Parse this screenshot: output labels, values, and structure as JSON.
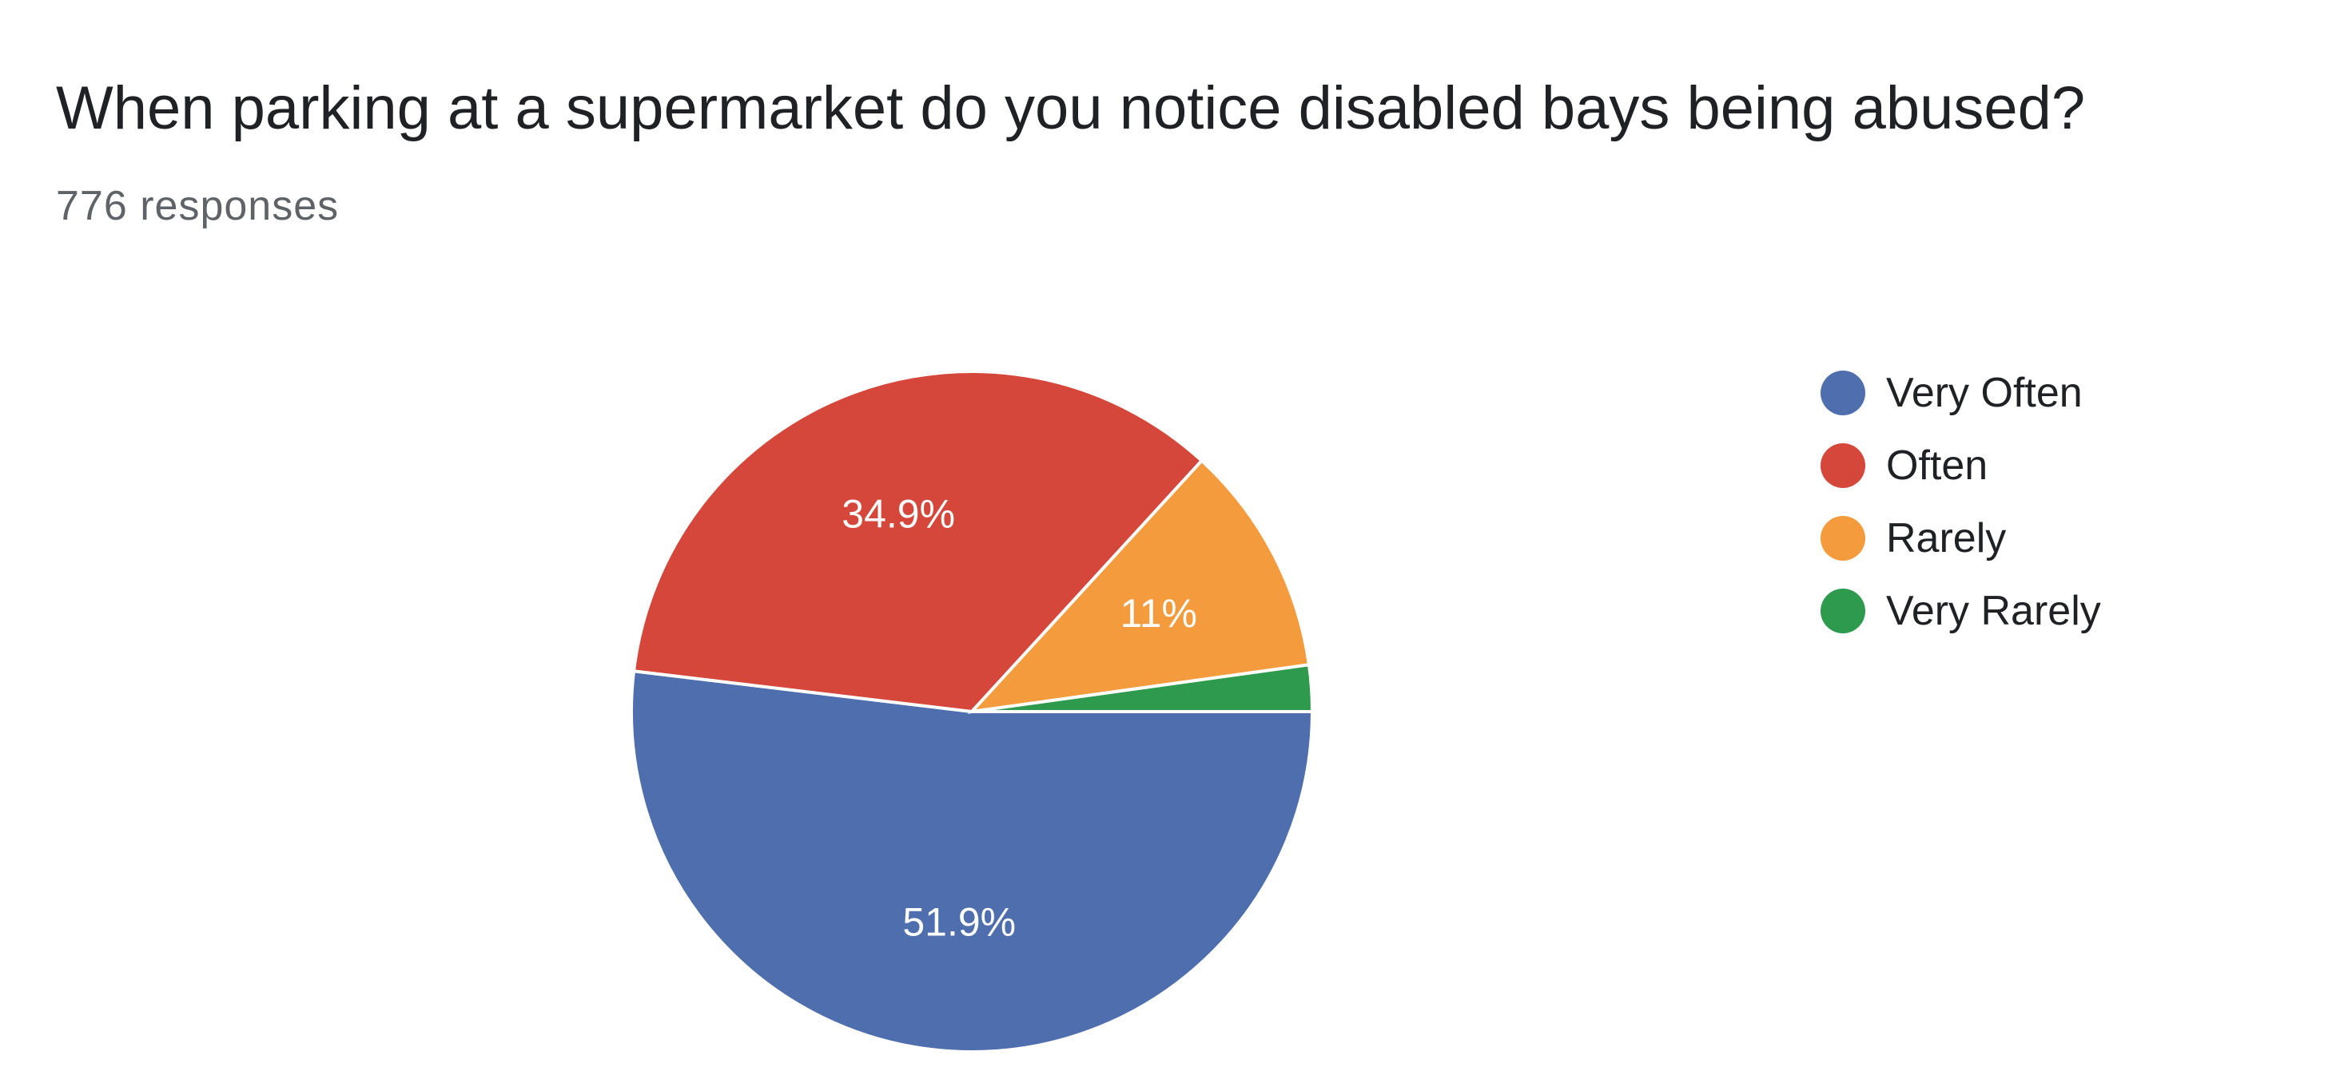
{
  "title": "When parking at a supermarket do you notice disabled bays being abused?",
  "subtitle": "776 responses",
  "chart_data": {
    "type": "pie",
    "title": "When parking at a supermarket do you notice disabled bays being abused?",
    "categories": [
      "Very Often",
      "Often",
      "Rarely",
      "Very Rarely"
    ],
    "values": [
      51.9,
      34.9,
      11,
      2.2
    ],
    "labels": [
      "51.9%",
      "34.9%",
      "11%",
      ""
    ],
    "colors": [
      "#4e6eae",
      "#d5473b",
      "#f39b3d",
      "#2e9a4d"
    ],
    "legend_position": "right",
    "start": "3 o'clock, clockwise"
  }
}
